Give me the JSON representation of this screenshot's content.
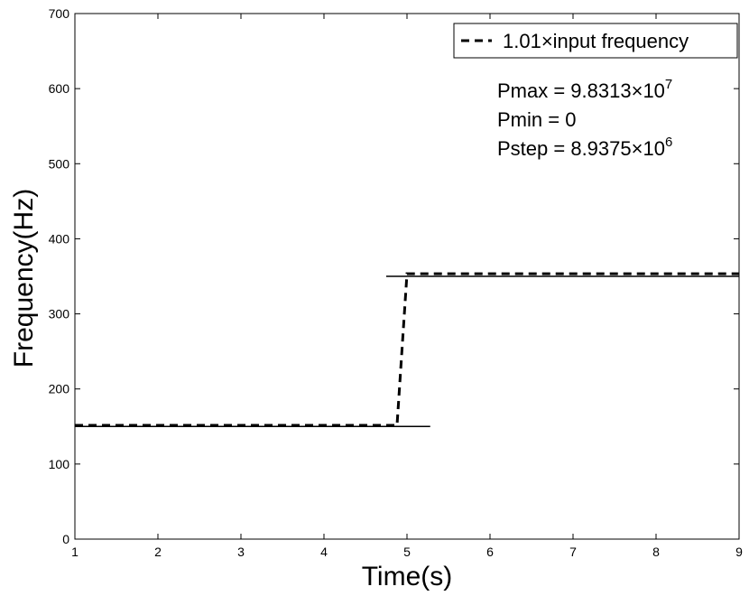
{
  "chart_data": {
    "type": "line",
    "title": "",
    "xlabel": "Time(s)",
    "ylabel": "Frequency(Hz)",
    "xlim": [
      1,
      9
    ],
    "ylim": [
      0,
      700
    ],
    "xticks": [
      1,
      2,
      3,
      4,
      5,
      6,
      7,
      8,
      9
    ],
    "yticks": [
      0,
      100,
      200,
      300,
      400,
      500,
      600,
      700
    ],
    "grid": false,
    "legend_position": "top-right",
    "series": [
      {
        "name": "1.01×input frequency",
        "style": "dashed",
        "color": "#000000",
        "x": [
          1,
          4.88,
          5.0,
          9
        ],
        "y": [
          151.5,
          151.5,
          353.5,
          353.5
        ]
      },
      {
        "style": "solid",
        "color": "#000000",
        "segments": [
          {
            "x": [
              1,
              5.28
            ],
            "y": [
              150,
              150
            ]
          },
          {
            "x": [
              4.75,
              9
            ],
            "y": [
              350,
              350
            ]
          }
        ]
      }
    ],
    "annotations": [
      {
        "lead": "Pmax = 9.8313×10",
        "sup": "7"
      },
      {
        "lead": "Pmin = 0",
        "sup": ""
      },
      {
        "lead": "Pstep = 8.9375×10",
        "sup": "6"
      }
    ]
  }
}
